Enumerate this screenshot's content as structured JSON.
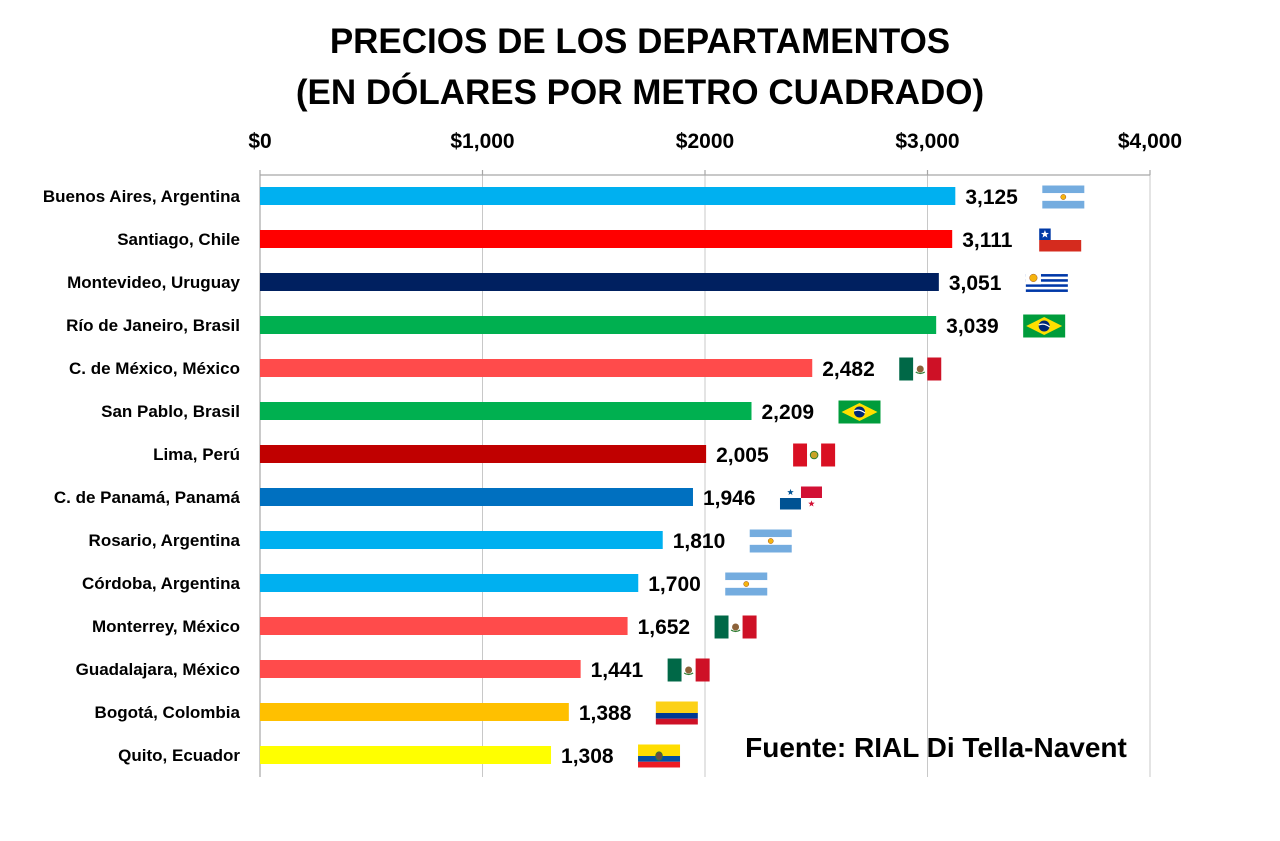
{
  "chart_data": {
    "type": "bar",
    "orientation": "horizontal",
    "title": [
      "PRECIOS DE LOS DEPARTAMENTOS",
      "(EN DÓLARES POR METRO CUADRADO)"
    ],
    "xlim": [
      0,
      4000
    ],
    "x_ticks": [
      {
        "value": 0,
        "label": "$0"
      },
      {
        "value": 1000,
        "label": "$1,000"
      },
      {
        "value": 2000,
        "label": "$2000"
      },
      {
        "value": 3000,
        "label": "$3,000"
      },
      {
        "value": 4000,
        "label": "$4,000"
      }
    ],
    "axis_position": "top",
    "grid": true,
    "source": "Fuente: RIAL Di Tella-Navent",
    "bars": [
      {
        "label": "Buenos Aires, Argentina",
        "value": 3125,
        "value_label": "3,125",
        "color": "#00b0f0",
        "flag": "argentina-flag-icon"
      },
      {
        "label": "Santiago, Chile",
        "value": 3111,
        "value_label": "3,111",
        "color": "#ff0000",
        "flag": "chile-flag-icon"
      },
      {
        "label": "Montevideo, Uruguay",
        "value": 3051,
        "value_label": "3,051",
        "color": "#002060",
        "flag": "uruguay-flag-icon"
      },
      {
        "label": "Río de Janeiro, Brasil",
        "value": 3039,
        "value_label": "3,039",
        "color": "#00b050",
        "flag": "brazil-flag-icon"
      },
      {
        "label": "C. de México, México",
        "value": 2482,
        "value_label": "2,482",
        "color": "#ff4b4b",
        "flag": "mexico-flag-icon"
      },
      {
        "label": "San Pablo, Brasil",
        "value": 2209,
        "value_label": "2,209",
        "color": "#00b050",
        "flag": "brazil-flag-icon"
      },
      {
        "label": "Lima, Perú",
        "value": 2005,
        "value_label": "2,005",
        "color": "#c00000",
        "flag": "peru-flag-icon"
      },
      {
        "label": "C. de Panamá, Panamá",
        "value": 1946,
        "value_label": "1,946",
        "color": "#0070c0",
        "flag": "panama-flag-icon"
      },
      {
        "label": "Rosario, Argentina",
        "value": 1810,
        "value_label": "1,810",
        "color": "#00b0f0",
        "flag": "argentina-flag-icon"
      },
      {
        "label": "Córdoba, Argentina",
        "value": 1700,
        "value_label": "1,700",
        "color": "#00b0f0",
        "flag": "argentina-flag-icon"
      },
      {
        "label": "Monterrey, México",
        "value": 1652,
        "value_label": "1,652",
        "color": "#ff4b4b",
        "flag": "mexico-flag-icon"
      },
      {
        "label": "Guadalajara, México",
        "value": 1441,
        "value_label": "1,441",
        "color": "#ff4b4b",
        "flag": "mexico-flag-icon"
      },
      {
        "label": "Bogotá, Colombia",
        "value": 1388,
        "value_label": "1,388",
        "color": "#ffc000",
        "flag": "colombia-flag-icon"
      },
      {
        "label": "Quito, Ecuador",
        "value": 1308,
        "value_label": "1,308",
        "color": "#ffff00",
        "flag": "ecuador-flag-icon"
      }
    ]
  }
}
